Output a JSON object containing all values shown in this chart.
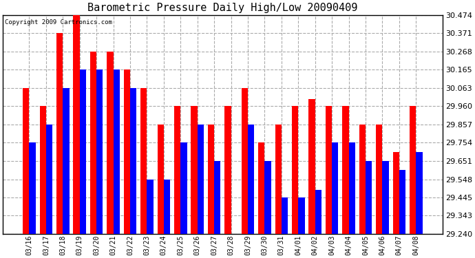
{
  "title": "Barometric Pressure Daily High/Low 20090409",
  "copyright": "Copyright 2009 Cartronics.com",
  "categories": [
    "03/16",
    "03/17",
    "03/18",
    "03/19",
    "03/20",
    "03/21",
    "03/22",
    "03/23",
    "03/24",
    "03/25",
    "03/26",
    "03/27",
    "03/28",
    "03/29",
    "03/30",
    "03/31",
    "04/01",
    "04/02",
    "04/03",
    "04/04",
    "04/05",
    "04/06",
    "04/07",
    "04/08"
  ],
  "highs": [
    30.063,
    29.96,
    30.371,
    30.474,
    30.268,
    30.268,
    30.165,
    30.063,
    29.857,
    29.96,
    29.96,
    29.857,
    29.96,
    30.063,
    29.754,
    29.857,
    29.96,
    30.0,
    29.96,
    29.96,
    29.857,
    29.857,
    29.7,
    29.96
  ],
  "lows": [
    29.754,
    29.857,
    30.063,
    30.165,
    30.165,
    30.165,
    30.063,
    29.548,
    29.548,
    29.754,
    29.857,
    29.651,
    29.24,
    29.857,
    29.651,
    29.445,
    29.445,
    29.49,
    29.754,
    29.754,
    29.651,
    29.651,
    29.6,
    29.7
  ],
  "high_color": "#FF0000",
  "low_color": "#0000FF",
  "background_color": "#FFFFFF",
  "grid_color": "#AAAAAA",
  "ymin": 29.24,
  "ymax": 30.474,
  "yticks": [
    29.24,
    29.343,
    29.445,
    29.548,
    29.651,
    29.754,
    29.857,
    29.96,
    30.063,
    30.165,
    30.268,
    30.371,
    30.474
  ]
}
